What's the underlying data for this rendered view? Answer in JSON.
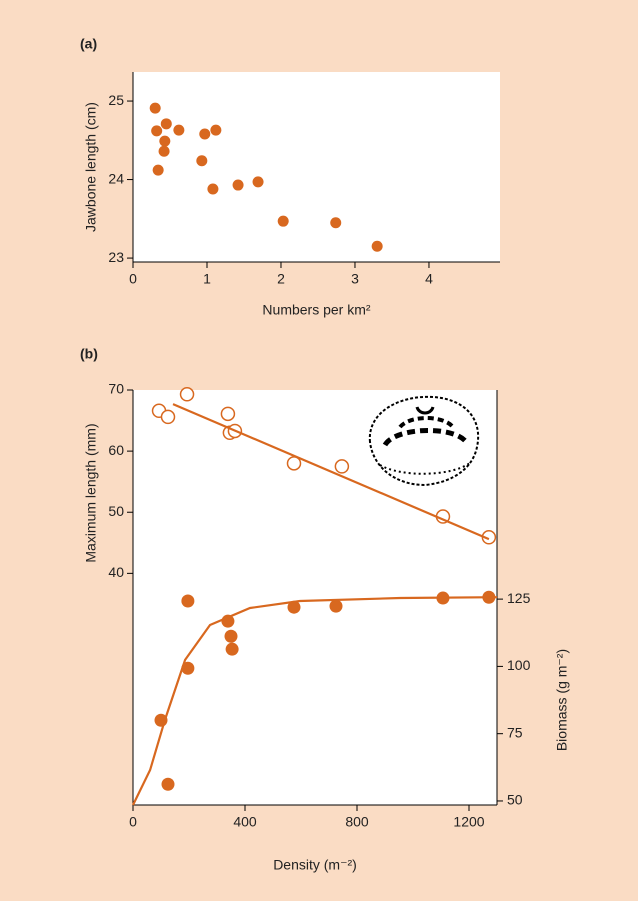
{
  "chart_data": [
    {
      "type": "scatter",
      "title": "(a)",
      "xlabel": "Numbers per km²",
      "ylabel": "Jawbone length (cm)",
      "xlim": [
        0,
        4.96
      ],
      "xticks": [
        0,
        1,
        2,
        3,
        4
      ],
      "ylim": [
        22.95,
        25.37
      ],
      "yticks": [
        23,
        24,
        25
      ],
      "series": [
        {
          "color": "#d8681f",
          "marker": "filled",
          "x": [
            0.3,
            0.32,
            0.45,
            0.43,
            0.42,
            0.34,
            0.62,
            0.97,
            1.12,
            0.93,
            1.08,
            1.42,
            1.69,
            2.03,
            2.74,
            3.3
          ],
          "values": [
            24.91,
            24.62,
            24.71,
            24.49,
            24.36,
            24.12,
            24.63,
            24.58,
            24.63,
            24.24,
            23.88,
            23.93,
            23.97,
            23.47,
            23.45,
            23.15
          ]
        }
      ]
    },
    {
      "type": "scatter",
      "title": "(b)",
      "xlabel": "Density (m⁻²)",
      "ylabel": "Maximum length (mm)",
      "y2label": "Biomass (g m⁻²)",
      "xlim": [
        0,
        1300
      ],
      "xticks": [
        0,
        400,
        800,
        1200
      ],
      "ylim": [
        2.1,
        70
      ],
      "yticks": [
        40,
        50,
        60,
        70
      ],
      "y2lim": [
        48.5,
        202.7
      ],
      "y2ticks": [
        50,
        75,
        100,
        125
      ],
      "series": [
        {
          "color": "#d8681f",
          "marker": "open",
          "x": [
            93,
            125,
            193,
            339,
            346,
            364,
            575,
            746,
            1107,
            1271
          ],
          "values": [
            66.6,
            65.6,
            69.3,
            66.1,
            63.0,
            63.3,
            58.0,
            57.5,
            49.3,
            45.9
          ]
        },
        {
          "color": "#d8681f",
          "mode": "line",
          "x": [
            143,
            1271
          ],
          "values": [
            67.7,
            45.6
          ]
        },
        {
          "color": "#d8681f",
          "marker": "filled",
          "axis": "y2",
          "x": [
            100,
            125,
            196,
            196,
            339,
            350,
            354,
            575,
            725,
            1107,
            1271
          ],
          "values": [
            80.0,
            56.2,
            99.3,
            124.3,
            116.8,
            111.2,
            106.4,
            122.0,
            122.4,
            125.4,
            125.7
          ]
        },
        {
          "color": "#d8681f",
          "mode": "line",
          "axis": "y2",
          "x": [
            0,
            61,
            114,
            186,
            275,
            418,
            596,
            954,
            1300
          ],
          "values": [
            48.5,
            61.5,
            80.1,
            102.4,
            115.4,
            121.7,
            124.3,
            125.4,
            125.7
          ]
        }
      ]
    }
  ]
}
